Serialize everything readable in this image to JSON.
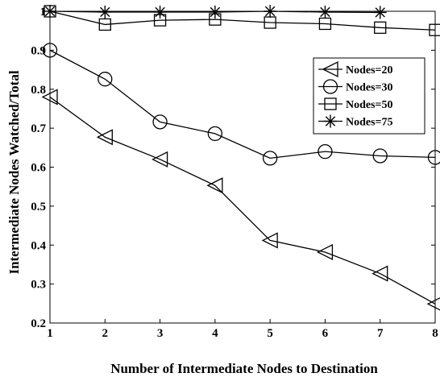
{
  "chart_data": {
    "type": "line",
    "xlabel": "Number of Intermediate Nodes to Destination",
    "ylabel": "Intermediate Nodes Watched/Total",
    "xlim": [
      1,
      8
    ],
    "ylim": [
      0.2,
      1.0
    ],
    "x_ticks": [
      "1",
      "2",
      "3",
      "4",
      "5",
      "6",
      "7",
      "8"
    ],
    "y_ticks": [
      "0.2",
      "0.3",
      "0.4",
      "0.5",
      "0.6",
      "0.7",
      "0.8",
      "0.9",
      "1"
    ],
    "grid": false,
    "legend_position": "top-right",
    "series": [
      {
        "name": "Nodes=20",
        "marker": "triangle-left",
        "x": [
          1,
          2,
          3,
          4,
          5,
          6,
          7,
          8
        ],
        "values": [
          0.78,
          0.677,
          0.62,
          0.553,
          0.412,
          0.382,
          0.327,
          0.249
        ]
      },
      {
        "name": "Nodes=30",
        "marker": "circle",
        "x": [
          1,
          2,
          3,
          4,
          5,
          6,
          7,
          8
        ],
        "values": [
          0.9,
          0.826,
          0.716,
          0.686,
          0.623,
          0.64,
          0.629,
          0.625
        ]
      },
      {
        "name": "Nodes=50",
        "marker": "square",
        "x": [
          1,
          2,
          3,
          4,
          5,
          6,
          7,
          8
        ],
        "values": [
          1.0,
          0.966,
          0.977,
          0.979,
          0.971,
          0.968,
          0.958,
          0.952
        ]
      },
      {
        "name": "Nodes=75",
        "marker": "asterisk",
        "x": [
          1,
          2,
          3,
          4,
          5,
          6,
          7
        ],
        "values": [
          1.0,
          0.998,
          0.998,
          0.998,
          1.0,
          0.998,
          0.997
        ]
      }
    ]
  }
}
